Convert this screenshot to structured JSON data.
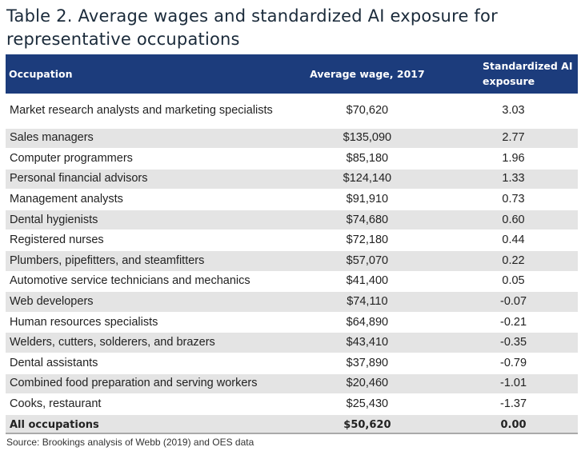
{
  "title": "Table 2. Average wages and standardized AI exposure for representative occupations",
  "headers": {
    "occupation": "Occupation",
    "wage": "Average wage, 2017",
    "exposure": "Standardized AI exposure"
  },
  "rows": [
    {
      "occupation": "Market research analysts and marketing specialists",
      "wage": "$70,620",
      "exposure": "3.03"
    },
    {
      "occupation": "Sales managers",
      "wage": "$135,090",
      "exposure": "2.77"
    },
    {
      "occupation": "Computer programmers",
      "wage": "$85,180",
      "exposure": "1.96"
    },
    {
      "occupation": "Personal financial advisors",
      "wage": "$124,140",
      "exposure": "1.33"
    },
    {
      "occupation": "Management analysts",
      "wage": "$91,910",
      "exposure": "0.73"
    },
    {
      "occupation": "Dental hygienists",
      "wage": "$74,680",
      "exposure": "0.60"
    },
    {
      "occupation": "Registered nurses",
      "wage": "$72,180",
      "exposure": "0.44"
    },
    {
      "occupation": "Plumbers, pipefitters, and steamfitters",
      "wage": "$57,070",
      "exposure": "0.22"
    },
    {
      "occupation": "Automotive service technicians and mechanics",
      "wage": "$41,400",
      "exposure": "0.05"
    },
    {
      "occupation": "Web developers",
      "wage": "$74,110",
      "exposure": "-0.07"
    },
    {
      "occupation": "Human resources specialists",
      "wage": "$64,890",
      "exposure": "-0.21"
    },
    {
      "occupation": "Welders, cutters, solderers, and brazers",
      "wage": "$43,410",
      "exposure": "-0.35"
    },
    {
      "occupation": "Dental assistants",
      "wage": "$37,890",
      "exposure": "-0.79"
    },
    {
      "occupation": "Combined food preparation and serving workers",
      "wage": "$20,460",
      "exposure": "-1.01"
    },
    {
      "occupation": "Cooks, restaurant",
      "wage": "$25,430",
      "exposure": "-1.37"
    }
  ],
  "total": {
    "occupation": "All occupations",
    "wage": "$50,620",
    "exposure": "0.00"
  },
  "source": "Source: Brookings analysis of Webb (2019) and OES data",
  "colors": {
    "header_bg": "#1c3c7c",
    "stripe": "#e4e4e4"
  }
}
